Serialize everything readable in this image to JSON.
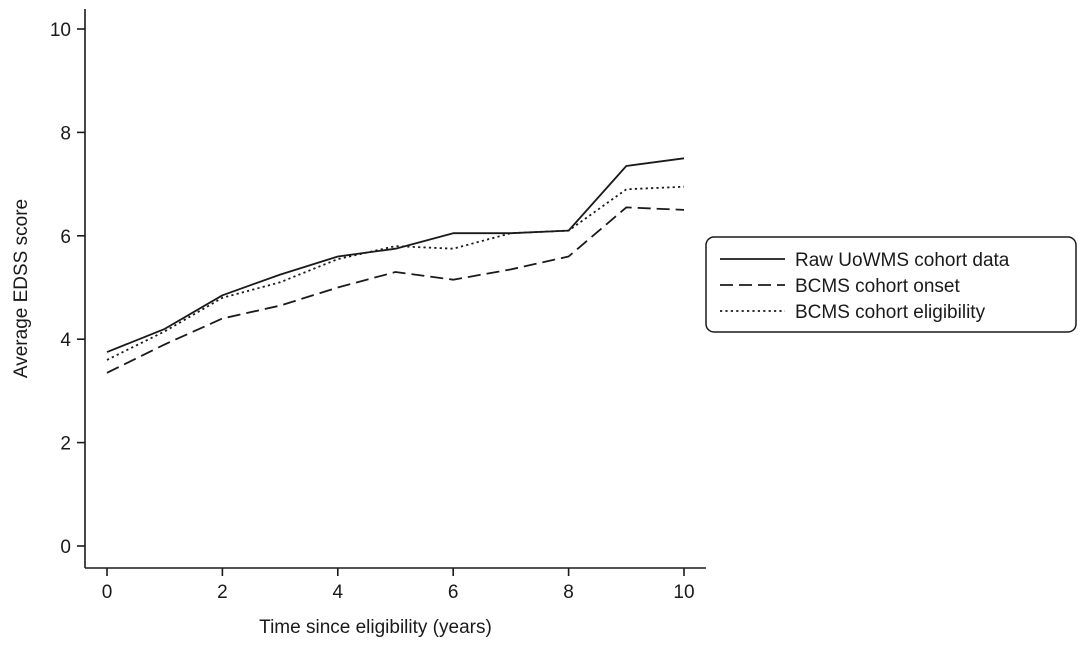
{
  "chart_data": {
    "type": "line",
    "xlabel": "Time since eligibility (years)",
    "ylabel": "Average EDSS score",
    "xlim": [
      0,
      10
    ],
    "ylim": [
      0,
      10
    ],
    "xticks": [
      0,
      2,
      4,
      6,
      8,
      10
    ],
    "yticks": [
      0,
      2,
      4,
      6,
      8,
      10
    ],
    "grid": false,
    "legend_position": "right",
    "series": [
      {
        "name": "Raw UoWMS cohort data",
        "style": "solid",
        "x": [
          0,
          1,
          2,
          3,
          4,
          5,
          6,
          7,
          8,
          9,
          10
        ],
        "y": [
          3.75,
          4.2,
          4.85,
          5.25,
          5.6,
          5.75,
          6.05,
          6.05,
          6.1,
          7.35,
          7.5
        ]
      },
      {
        "name": "BCMS cohort onset",
        "style": "dashed",
        "x": [
          0,
          1,
          2,
          3,
          4,
          5,
          6,
          7,
          8,
          9,
          10
        ],
        "y": [
          3.35,
          3.9,
          4.4,
          4.65,
          5.0,
          5.3,
          5.15,
          5.35,
          5.6,
          6.55,
          6.5
        ]
      },
      {
        "name": "BCMS cohort eligibility",
        "style": "dotted",
        "x": [
          0,
          1,
          2,
          3,
          4,
          5,
          6,
          7,
          8,
          9,
          10
        ],
        "y": [
          3.6,
          4.15,
          4.8,
          5.1,
          5.55,
          5.8,
          5.75,
          6.05,
          6.1,
          6.9,
          6.95
        ]
      }
    ]
  }
}
